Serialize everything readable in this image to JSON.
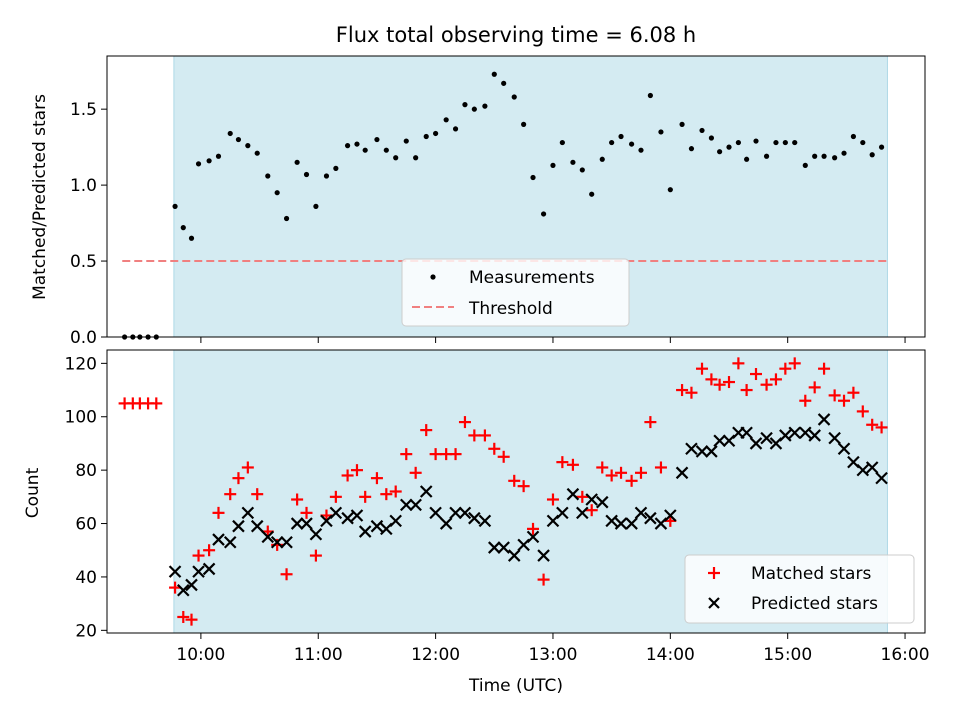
{
  "chart_data": [
    {
      "type": "scatter",
      "title": "Flux total observing time = 6.08 h",
      "xlabel": "",
      "ylabel": "Matched/Predicted stars",
      "xlim": [
        9.2,
        16.17
      ],
      "ylim": [
        0,
        1.85
      ],
      "yticks": [
        0.0,
        0.5,
        1.0,
        1.5
      ],
      "ytick_labels": [
        "0.0",
        "0.5",
        "1.0",
        "1.5"
      ],
      "xticks": [
        10,
        11,
        12,
        13,
        14,
        15,
        16
      ],
      "shaded_span": [
        9.77,
        15.85
      ],
      "threshold": {
        "name": "Threshold",
        "value": 0.5,
        "x_range": [
          9.33,
          15.85
        ],
        "color": "#f08080"
      },
      "series": [
        {
          "name": "Measurements",
          "marker": "dot",
          "color": "#000000",
          "points": [
            [
              9.35,
              0.0
            ],
            [
              9.42,
              0.0
            ],
            [
              9.48,
              0.0
            ],
            [
              9.55,
              0.0
            ],
            [
              9.62,
              0.0
            ],
            [
              9.78,
              0.86
            ],
            [
              9.85,
              0.72
            ],
            [
              9.92,
              0.65
            ],
            [
              9.98,
              1.14
            ],
            [
              10.07,
              1.16
            ],
            [
              10.15,
              1.19
            ],
            [
              10.25,
              1.34
            ],
            [
              10.32,
              1.3
            ],
            [
              10.4,
              1.26
            ],
            [
              10.48,
              1.21
            ],
            [
              10.57,
              1.06
            ],
            [
              10.65,
              0.95
            ],
            [
              10.73,
              0.78
            ],
            [
              10.82,
              1.15
            ],
            [
              10.9,
              1.07
            ],
            [
              10.98,
              0.86
            ],
            [
              11.07,
              1.06
            ],
            [
              11.15,
              1.11
            ],
            [
              11.25,
              1.26
            ],
            [
              11.33,
              1.27
            ],
            [
              11.4,
              1.23
            ],
            [
              11.5,
              1.3
            ],
            [
              11.58,
              1.23
            ],
            [
              11.66,
              1.18
            ],
            [
              11.75,
              1.29
            ],
            [
              11.83,
              1.18
            ],
            [
              11.92,
              1.32
            ],
            [
              12.0,
              1.34
            ],
            [
              12.09,
              1.43
            ],
            [
              12.17,
              1.37
            ],
            [
              12.25,
              1.53
            ],
            [
              12.33,
              1.5
            ],
            [
              12.42,
              1.52
            ],
            [
              12.5,
              1.73
            ],
            [
              12.58,
              1.67
            ],
            [
              12.67,
              1.58
            ],
            [
              12.75,
              1.4
            ],
            [
              12.83,
              1.05
            ],
            [
              12.92,
              0.81
            ],
            [
              13.0,
              1.13
            ],
            [
              13.08,
              1.28
            ],
            [
              13.17,
              1.15
            ],
            [
              13.25,
              1.1
            ],
            [
              13.33,
              0.94
            ],
            [
              13.42,
              1.17
            ],
            [
              13.5,
              1.28
            ],
            [
              13.58,
              1.32
            ],
            [
              13.67,
              1.27
            ],
            [
              13.75,
              1.23
            ],
            [
              13.83,
              1.59
            ],
            [
              13.92,
              1.35
            ],
            [
              14.0,
              0.97
            ],
            [
              14.1,
              1.4
            ],
            [
              14.18,
              1.24
            ],
            [
              14.27,
              1.36
            ],
            [
              14.35,
              1.31
            ],
            [
              14.42,
              1.22
            ],
            [
              14.5,
              1.25
            ],
            [
              14.58,
              1.28
            ],
            [
              14.65,
              1.17
            ],
            [
              14.73,
              1.29
            ],
            [
              14.82,
              1.19
            ],
            [
              14.9,
              1.28
            ],
            [
              14.98,
              1.28
            ],
            [
              15.06,
              1.28
            ],
            [
              15.15,
              1.13
            ],
            [
              15.23,
              1.19
            ],
            [
              15.31,
              1.19
            ],
            [
              15.4,
              1.18
            ],
            [
              15.48,
              1.21
            ],
            [
              15.56,
              1.32
            ],
            [
              15.64,
              1.28
            ],
            [
              15.72,
              1.2
            ],
            [
              15.8,
              1.25
            ]
          ]
        }
      ],
      "legend": [
        "Measurements",
        "Threshold"
      ],
      "legend_placement": "bottom-center"
    },
    {
      "type": "scatter",
      "title": "",
      "xlabel": "Time (UTC)",
      "ylabel": "Count",
      "xlim": [
        9.2,
        16.17
      ],
      "ylim": [
        19,
        125
      ],
      "yticks": [
        20,
        40,
        60,
        80,
        100,
        120
      ],
      "ytick_labels": [
        "20",
        "40",
        "60",
        "80",
        "100",
        "120"
      ],
      "xticks": [
        10,
        11,
        12,
        13,
        14,
        15,
        16
      ],
      "xtick_labels": [
        "10:00",
        "11:00",
        "12:00",
        "13:00",
        "14:00",
        "15:00",
        "16:00"
      ],
      "shaded_span": [
        9.77,
        15.85
      ],
      "series": [
        {
          "name": "Matched stars",
          "marker": "plus",
          "color": "#ff0000",
          "points": [
            [
              9.35,
              105
            ],
            [
              9.42,
              105
            ],
            [
              9.48,
              105
            ],
            [
              9.55,
              105
            ],
            [
              9.62,
              105
            ],
            [
              9.78,
              36
            ],
            [
              9.85,
              25
            ],
            [
              9.92,
              24
            ],
            [
              9.98,
              48
            ],
            [
              10.07,
              50
            ],
            [
              10.15,
              64
            ],
            [
              10.25,
              71
            ],
            [
              10.32,
              77
            ],
            [
              10.4,
              81
            ],
            [
              10.48,
              71
            ],
            [
              10.57,
              57
            ],
            [
              10.65,
              52
            ],
            [
              10.73,
              41
            ],
            [
              10.82,
              69
            ],
            [
              10.9,
              64
            ],
            [
              10.98,
              48
            ],
            [
              11.07,
              63
            ],
            [
              11.15,
              70
            ],
            [
              11.25,
              78
            ],
            [
              11.33,
              80
            ],
            [
              11.4,
              70
            ],
            [
              11.5,
              77
            ],
            [
              11.58,
              71
            ],
            [
              11.66,
              72
            ],
            [
              11.75,
              86
            ],
            [
              11.83,
              79
            ],
            [
              11.92,
              95
            ],
            [
              12.0,
              86
            ],
            [
              12.09,
              86
            ],
            [
              12.17,
              86
            ],
            [
              12.25,
              98
            ],
            [
              12.33,
              93
            ],
            [
              12.42,
              93
            ],
            [
              12.5,
              88
            ],
            [
              12.58,
              85
            ],
            [
              12.67,
              76
            ],
            [
              12.75,
              74
            ],
            [
              12.83,
              58
            ],
            [
              12.92,
              39
            ],
            [
              13.0,
              69
            ],
            [
              13.08,
              83
            ],
            [
              13.17,
              82
            ],
            [
              13.25,
              70
            ],
            [
              13.33,
              65
            ],
            [
              13.42,
              81
            ],
            [
              13.5,
              78
            ],
            [
              13.58,
              79
            ],
            [
              13.67,
              76
            ],
            [
              13.75,
              79
            ],
            [
              13.83,
              98
            ],
            [
              13.92,
              81
            ],
            [
              14.0,
              61
            ],
            [
              14.1,
              110
            ],
            [
              14.18,
              109
            ],
            [
              14.27,
              118
            ],
            [
              14.35,
              114
            ],
            [
              14.42,
              112
            ],
            [
              14.5,
              113
            ],
            [
              14.58,
              120
            ],
            [
              14.65,
              110
            ],
            [
              14.73,
              116
            ],
            [
              14.82,
              112
            ],
            [
              14.9,
              114
            ],
            [
              14.98,
              118
            ],
            [
              15.06,
              120
            ],
            [
              15.15,
              106
            ],
            [
              15.23,
              111
            ],
            [
              15.31,
              118
            ],
            [
              15.4,
              108
            ],
            [
              15.48,
              106
            ],
            [
              15.56,
              109
            ],
            [
              15.64,
              102
            ],
            [
              15.72,
              97
            ],
            [
              15.8,
              96
            ]
          ]
        },
        {
          "name": "Predicted stars",
          "marker": "x",
          "color": "#000000",
          "points": [
            [
              9.78,
              42
            ],
            [
              9.85,
              35
            ],
            [
              9.92,
              37
            ],
            [
              9.98,
              42
            ],
            [
              10.07,
              43
            ],
            [
              10.15,
              54
            ],
            [
              10.25,
              53
            ],
            [
              10.32,
              59
            ],
            [
              10.4,
              64
            ],
            [
              10.48,
              59
            ],
            [
              10.57,
              55
            ],
            [
              10.65,
              53
            ],
            [
              10.73,
              53
            ],
            [
              10.82,
              60
            ],
            [
              10.9,
              60
            ],
            [
              10.98,
              56
            ],
            [
              11.07,
              61
            ],
            [
              11.15,
              64
            ],
            [
              11.25,
              62
            ],
            [
              11.33,
              63
            ],
            [
              11.4,
              57
            ],
            [
              11.5,
              59
            ],
            [
              11.58,
              58
            ],
            [
              11.66,
              61
            ],
            [
              11.75,
              67
            ],
            [
              11.83,
              67
            ],
            [
              11.92,
              72
            ],
            [
              12.0,
              64
            ],
            [
              12.09,
              60
            ],
            [
              12.17,
              64
            ],
            [
              12.25,
              64
            ],
            [
              12.33,
              62
            ],
            [
              12.42,
              61
            ],
            [
              12.5,
              51
            ],
            [
              12.58,
              51
            ],
            [
              12.67,
              48
            ],
            [
              12.75,
              52
            ],
            [
              12.83,
              55
            ],
            [
              12.92,
              48
            ],
            [
              13.0,
              61
            ],
            [
              13.08,
              64
            ],
            [
              13.17,
              71
            ],
            [
              13.25,
              64
            ],
            [
              13.33,
              69
            ],
            [
              13.42,
              68
            ],
            [
              13.5,
              61
            ],
            [
              13.58,
              60
            ],
            [
              13.67,
              60
            ],
            [
              13.75,
              64
            ],
            [
              13.83,
              62
            ],
            [
              13.92,
              60
            ],
            [
              14.0,
              63
            ],
            [
              14.1,
              79
            ],
            [
              14.18,
              88
            ],
            [
              14.27,
              87
            ],
            [
              14.35,
              87
            ],
            [
              14.42,
              91
            ],
            [
              14.5,
              91
            ],
            [
              14.58,
              94
            ],
            [
              14.65,
              94
            ],
            [
              14.73,
              90
            ],
            [
              14.82,
              92
            ],
            [
              14.9,
              90
            ],
            [
              14.98,
              93
            ],
            [
              15.06,
              94
            ],
            [
              15.15,
              94
            ],
            [
              15.23,
              93
            ],
            [
              15.31,
              99
            ],
            [
              15.4,
              92
            ],
            [
              15.48,
              88
            ],
            [
              15.56,
              83
            ],
            [
              15.64,
              80
            ],
            [
              15.72,
              81
            ],
            [
              15.8,
              77
            ]
          ]
        }
      ],
      "legend": [
        "Matched stars",
        "Predicted stars"
      ],
      "legend_placement": "bottom-right"
    }
  ],
  "colors": {
    "span": "#add8e6",
    "threshold": "#f08080",
    "matched": "#ff0000",
    "predicted": "#000000"
  }
}
